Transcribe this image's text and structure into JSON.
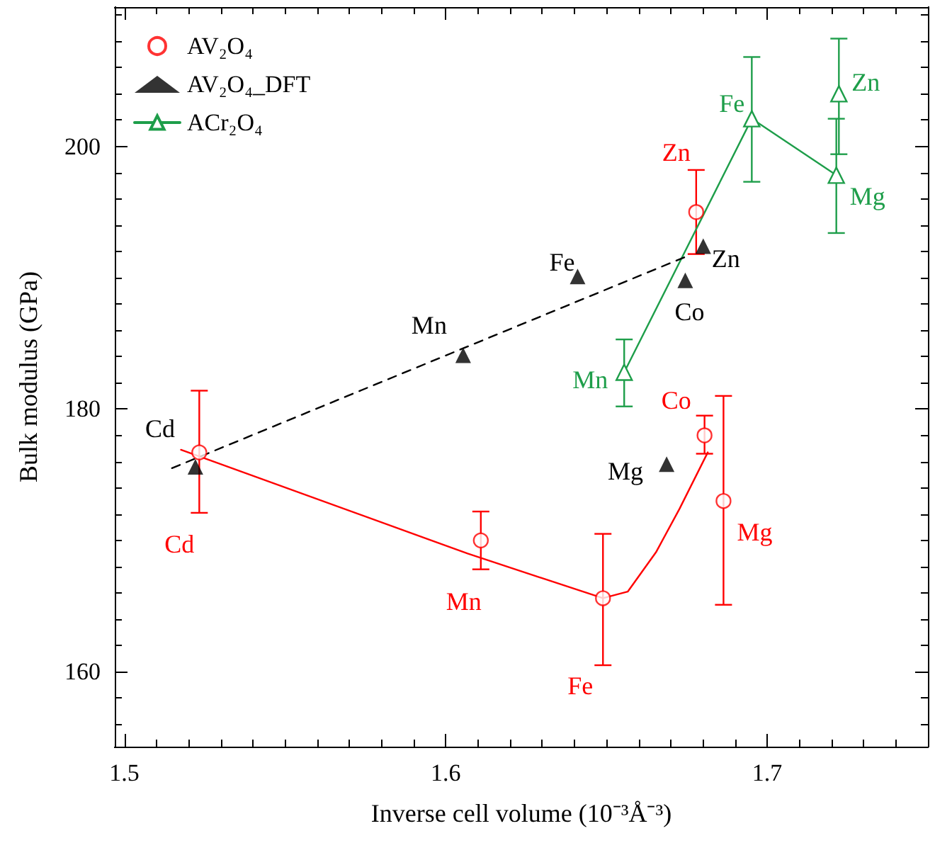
{
  "chart_data": {
    "type": "scatter",
    "xlabel": "Inverse cell volume (10⁻³Å⁻³)",
    "ylabel": "Bulk modulus (GPa)",
    "xlim": [
      1.497,
      1.75
    ],
    "xticks": [
      1.5,
      1.6,
      1.7
    ],
    "ylim": [
      154.3,
      210.6
    ],
    "yticks": [
      160,
      180,
      200
    ],
    "legend": "top left",
    "series": [
      {
        "name": "AV₂O₄",
        "marker": "circle",
        "color": "#ff0000",
        "x": [
          1.5233,
          1.6109,
          1.6489,
          1.6805,
          1.6864,
          1.6779
        ],
        "values": [
          176.7,
          170.0,
          165.6,
          178.0,
          173.0,
          195.0
        ],
        "errors": [
          [
            172.1,
            181.4
          ],
          [
            167.8,
            172.2
          ],
          [
            160.5,
            170.5
          ],
          [
            176.6,
            179.5
          ],
          [
            165.1,
            181.0
          ],
          [
            191.8,
            198.2
          ]
        ]
      },
      {
        "name": "AV₂O₄_DFT",
        "marker": "triangle",
        "color": "#000000",
        "x": [
          1.5221,
          1.6054,
          1.641,
          1.6745,
          1.6801,
          1.6687
        ],
        "values": [
          175.6,
          184.1,
          190.1,
          189.8,
          192.4,
          175.8
        ]
      },
      {
        "name": "ACr₂O₄",
        "type": "line",
        "marker": "triangle",
        "color": "#1e9e4a",
        "x": [
          1.6555,
          1.6952,
          1.7215,
          1.7219,
          1.7223
        ],
        "values": [
          182.8,
          202.1,
          197.8,
          null,
          204.0
        ],
        "errors": [
          [
            180.2,
            185.3
          ],
          [
            197.3,
            206.8
          ],
          [
            193.4,
            202.1
          ],
          null,
          [
            199.4,
            208.2
          ]
        ]
      },
      {
        "type": "line",
        "marker": "none",
        "color": "#ff0000",
        "x": [
          1.5176,
          1.6068,
          1.6489,
          1.6566,
          1.6654,
          1.6727,
          1.6815
        ],
        "values": [
          176.9,
          169.0,
          165.6,
          166.1,
          169.1,
          172.4,
          176.7
        ]
      },
      {
        "type": "line",
        "marker": "none",
        "line_style": "dashed",
        "color": "#000000",
        "x": [
          1.5148,
          1.6757
        ],
        "values": [
          175.5,
          191.7
        ]
      }
    ],
    "annotations": [
      {
        "text": "Cd",
        "x": 1.5233,
        "y": 172.1
      },
      {
        "text": "Mn",
        "x": 1.6109,
        "y": 170.0
      },
      {
        "text": "Fe",
        "x": 1.6489,
        "y": 165.6
      },
      {
        "text": "Co",
        "x": 1.6805,
        "y": 178.0
      },
      {
        "text": "Mg",
        "x": 1.6864,
        "y": 173.0
      },
      {
        "text": "Zn",
        "x": 1.6779,
        "y": 195.0
      },
      {
        "text": "Cd",
        "x": 1.5221,
        "y": 175.6
      },
      {
        "text": "Mn",
        "x": 1.6054,
        "y": 184.1
      },
      {
        "text": "Fe",
        "x": 1.641,
        "y": 190.1
      },
      {
        "text": "Co",
        "x": 1.6745,
        "y": 189.8
      },
      {
        "text": "Zn",
        "x": 1.6801,
        "y": 192.4
      },
      {
        "text": "Mg",
        "x": 1.6687,
        "y": 175.8
      },
      {
        "text": "Mn",
        "x": 1.6555,
        "y": 182.8
      },
      {
        "text": "Fe",
        "x": 1.6952,
        "y": 202.1
      },
      {
        "text": "Zn",
        "x": 1.7223,
        "y": 204.0
      },
      {
        "text": "Mg",
        "x": 1.7215,
        "y": 197.8
      }
    ]
  }
}
